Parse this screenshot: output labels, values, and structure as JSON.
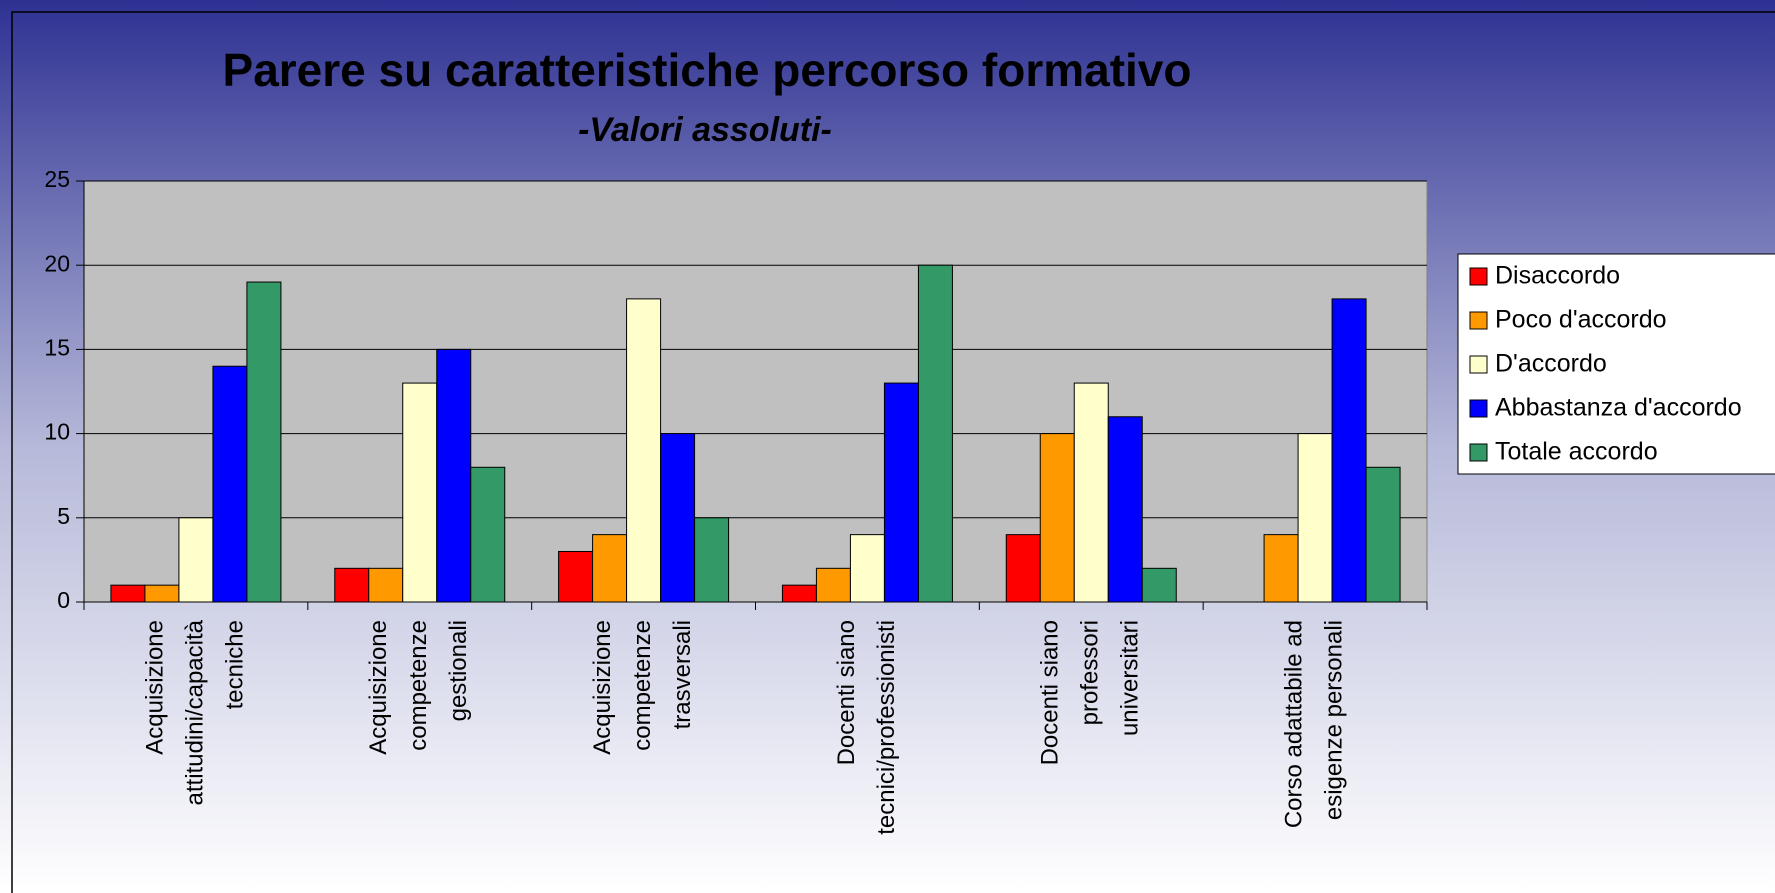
{
  "chart_data": {
    "type": "bar",
    "title": "Parere su caratteristiche percorso formativo",
    "subtitle": "-Valori assoluti-",
    "categories": [
      [
        "Acquisizione",
        "attitudini/capacità",
        "tecniche"
      ],
      [
        "Acquisizione",
        "competenze",
        "gestionali"
      ],
      [
        "Acquisizione",
        "competenze",
        "trasversali"
      ],
      [
        "Docenti siano",
        "tecnici/professionisti"
      ],
      [
        "Docenti siano",
        "professori",
        "universitari"
      ],
      [
        "Corso adattabile ad",
        "esigenze personali"
      ]
    ],
    "series": [
      {
        "name": "Disaccordo",
        "color": "#ff0000",
        "values": [
          1,
          2,
          3,
          1,
          4,
          0
        ]
      },
      {
        "name": "Poco d'accordo",
        "color": "#ff9900",
        "values": [
          1,
          2,
          4,
          2,
          10,
          4
        ]
      },
      {
        "name": "D'accordo",
        "color": "#ffffcc",
        "values": [
          5,
          13,
          18,
          4,
          13,
          10
        ]
      },
      {
        "name": "Abbastanza d'accordo",
        "color": "#0000ff",
        "values": [
          14,
          15,
          10,
          13,
          11,
          18
        ]
      },
      {
        "name": "Totale accordo",
        "color": "#339966",
        "values": [
          19,
          8,
          5,
          20,
          2,
          8
        ]
      }
    ],
    "ylim": [
      0,
      25
    ],
    "yticks": [
      0,
      5,
      10,
      15,
      20,
      25
    ],
    "grid": true,
    "legend": "right"
  }
}
